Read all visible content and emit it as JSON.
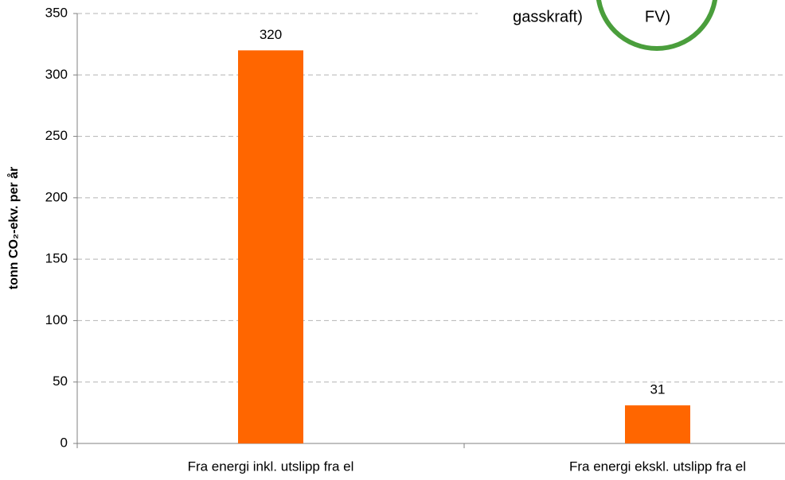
{
  "chart_data": {
    "type": "bar",
    "ylabel": "tonn CO₂-ekv. per år",
    "categories": [
      "Fra energi inkl. utslipp fra el",
      "Fra energi ekskl. utslipp fra el"
    ],
    "values": [
      320,
      31
    ],
    "color": "#ff6600",
    "ylim": [
      0,
      350
    ],
    "yticks": [
      0,
      50,
      100,
      150,
      200,
      250,
      300,
      350
    ],
    "grid": true,
    "annotations": [
      "gasskraft)",
      "FV)"
    ],
    "annotation_color": "#4a9e3c"
  }
}
